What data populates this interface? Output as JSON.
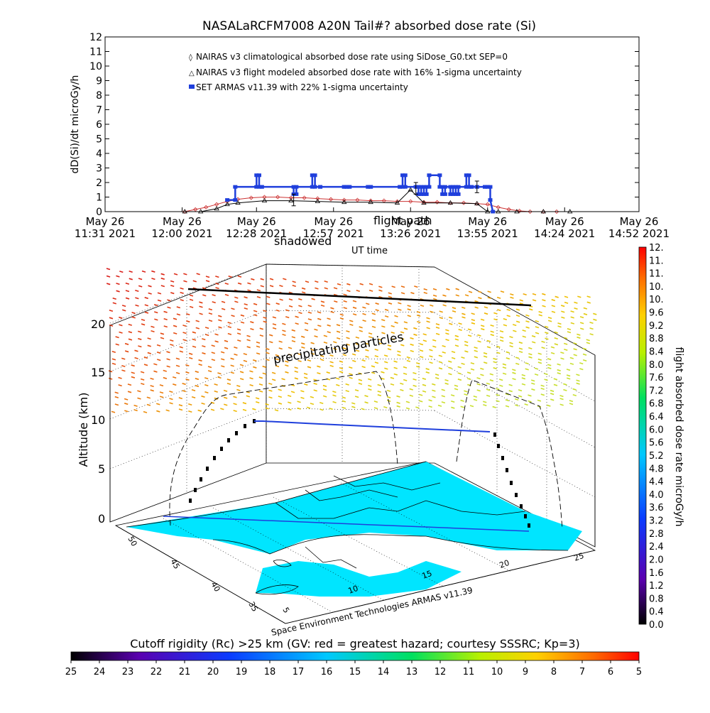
{
  "chart_data": [
    {
      "type": "line",
      "title": "NASALaRCFM7008  A20N Tail#? absorbed dose rate (Si)",
      "ylabel": "dD(Si)/dt microGy/h",
      "xlabel": "UT time",
      "ylim": [
        0,
        12
      ],
      "yticks": [
        "0",
        "1",
        "2",
        "3",
        "4",
        "5",
        "6",
        "7",
        "8",
        "9",
        "10",
        "11",
        "12"
      ],
      "x_range_minutes": [
        0,
        201
      ],
      "xticks": [
        {
          "t": 0,
          "line1": "May 26",
          "line2": "11:31 2021"
        },
        {
          "t": 29,
          "line1": "May 26",
          "line2": "12:00 2021"
        },
        {
          "t": 57,
          "line1": "May 26",
          "line2": "12:28 2021"
        },
        {
          "t": 86,
          "line1": "May 26",
          "line2": "12:57 2021"
        },
        {
          "t": 115,
          "line1": "May 26",
          "line2": "13:26 2021"
        },
        {
          "t": 144,
          "line1": "May 26",
          "line2": "13:55 2021"
        },
        {
          "t": 173,
          "line1": "May 26",
          "line2": "14:24 2021"
        },
        {
          "t": 201,
          "line1": "May 26",
          "line2": "14:52 2021"
        }
      ],
      "legend": [
        {
          "label": "NAIRAS v3 climatological absorbed dose rate using SiDose_G0.txt SEP=0",
          "color": "#cc3333",
          "marker": "diamond"
        },
        {
          "label": "NAIRAS v3 flight modeled absorbed dose rate with 16% 1-sigma uncertainty",
          "color": "#000000",
          "marker": "triangle"
        },
        {
          "label": "SET ARMAS v11.39 with 22% 1-sigma uncertainty",
          "color": "#1f3fdc",
          "marker": "square"
        }
      ],
      "series": [
        {
          "name": "NAIRAS v3 climatological absorbed dose rate using SiDose_G0.txt SEP=0",
          "color": "#cc3333",
          "x": [
            30,
            34,
            38,
            42,
            46,
            50,
            55,
            60,
            65,
            70,
            75,
            80,
            85,
            90,
            95,
            100,
            105,
            110,
            115,
            120,
            125,
            130,
            135,
            140,
            144,
            148,
            152,
            156,
            160,
            165,
            170
          ],
          "y": [
            0,
            0.15,
            0.3,
            0.5,
            0.7,
            0.85,
            0.95,
            1.0,
            1.0,
            0.95,
            0.95,
            0.9,
            0.85,
            0.8,
            0.8,
            0.75,
            0.75,
            0.7,
            0.7,
            0.65,
            0.65,
            0.6,
            0.6,
            0.55,
            0.5,
            0.3,
            0.15,
            0.05,
            0,
            0,
            0
          ]
        },
        {
          "name": "NAIRAS v3 flight modeled absorbed dose rate with 16% 1-sigma uncertainty",
          "color": "#000000",
          "x": [
            30,
            36,
            42,
            46,
            50,
            60,
            70,
            80,
            90,
            100,
            110,
            115,
            120,
            130,
            140,
            144,
            148,
            155,
            165,
            175
          ],
          "y": [
            0,
            0,
            0.2,
            0.5,
            0.6,
            0.75,
            0.75,
            0.7,
            0.65,
            0.65,
            0.6,
            1.5,
            0.6,
            0.6,
            0.55,
            0,
            0,
            0,
            0,
            0
          ]
        },
        {
          "name": "SET ARMAS v11.39 with 22% 1-sigma uncertainty",
          "color": "#1f3fdc",
          "x": [
            46,
            49,
            49,
            57,
            57,
            58,
            58,
            59,
            59,
            71,
            71,
            72,
            72,
            78,
            78,
            79,
            79,
            81,
            81,
            90,
            90,
            91,
            91,
            92,
            92,
            99,
            99,
            100,
            100,
            111,
            111,
            112,
            112,
            113,
            113,
            117,
            117,
            118,
            118,
            119,
            119,
            120,
            120,
            121,
            121,
            122,
            122,
            126,
            126,
            127,
            127,
            128,
            128,
            130,
            130,
            131,
            131,
            132,
            132,
            133,
            133,
            136,
            136,
            137,
            137,
            138,
            138,
            140,
            140,
            143,
            143,
            144,
            144,
            145,
            145,
            146
          ],
          "y": [
            0.8,
            0.8,
            1.7,
            1.7,
            2.5,
            2.5,
            1.7,
            1.7,
            1.7,
            1.7,
            1.2,
            1.2,
            1.7,
            1.7,
            2.5,
            2.5,
            1.7,
            1.7,
            1.7,
            1.7,
            1.7,
            1.7,
            1.7,
            1.7,
            1.7,
            1.7,
            1.7,
            1.7,
            1.7,
            1.7,
            1.7,
            1.7,
            2.5,
            2.5,
            1.7,
            1.7,
            1.7,
            1.7,
            1.2,
            1.2,
            1.7,
            1.7,
            1.2,
            1.2,
            1.7,
            1.7,
            2.5,
            2.5,
            1.7,
            1.7,
            1.2,
            1.2,
            1.7,
            1.7,
            1.2,
            1.2,
            1.7,
            1.7,
            1.2,
            1.2,
            1.7,
            1.7,
            2.5,
            2.5,
            1.7,
            1.7,
            1.7,
            1.7,
            1.7,
            1.7,
            1.7,
            1.7,
            1.7,
            1.7,
            0.8,
            0
          ]
        }
      ]
    },
    {
      "type": "scatter",
      "title": "",
      "annotations": {
        "shadowed": "shadowed",
        "flight_path": "flight path",
        "precipitating": "precipitating particles",
        "credit": "Space Environment Technologies ARMAS v11.39"
      },
      "zlabel": "Altitude (km)",
      "zticks": [
        "0",
        "5",
        "10",
        "15",
        "20"
      ],
      "lat_ticks": [
        "50",
        "45",
        "40",
        "35"
      ],
      "lon_ticks": [
        "5",
        "10",
        "15",
        "20",
        "25"
      ],
      "route": [
        {
          "lon": 6.0,
          "lat": 46.0,
          "alt_km": 0
        },
        {
          "lon": 7.0,
          "lat": 45.5,
          "alt_km": 5
        },
        {
          "lon": 9.0,
          "lat": 44.5,
          "alt_km": 11
        },
        {
          "lon": 22.0,
          "lat": 38.0,
          "alt_km": 11
        },
        {
          "lon": 24.0,
          "lat": 37.5,
          "alt_km": 5
        },
        {
          "lon": 24.5,
          "lat": 37.5,
          "alt_km": 0
        }
      ]
    }
  ],
  "colorbar_right": {
    "label": "flight absorbed dose rate microGy/h",
    "ticks": [
      "0.0",
      "0.4",
      "0.8",
      "1.2",
      "1.6",
      "2.0",
      "2.4",
      "2.8",
      "3.2",
      "3.6",
      "4.0",
      "4.4",
      "4.8",
      "5.2",
      "5.6",
      "6.0",
      "6.4",
      "6.8",
      "7.2",
      "7.6",
      "8.0",
      "8.4",
      "8.8",
      "9.2",
      "9.6",
      "10.",
      "10.",
      "11.",
      "11.",
      "12."
    ]
  },
  "colorbar_bottom": {
    "label": "Cutoff rigidity (Rc) >25 km (GV: red = greatest hazard; courtesy SSSRC; Kp=3)",
    "ticks": [
      "25",
      "24",
      "23",
      "22",
      "21",
      "20",
      "19",
      "18",
      "17",
      "16",
      "15",
      "14",
      "13",
      "12",
      "11",
      "10",
      "9",
      "8",
      "7",
      "6",
      "5"
    ]
  },
  "colors": {
    "armas": "#1f3fdc",
    "nairas_clim": "#cc3333",
    "nairas_flight": "#000000",
    "map_sea": "#00e5ff"
  }
}
